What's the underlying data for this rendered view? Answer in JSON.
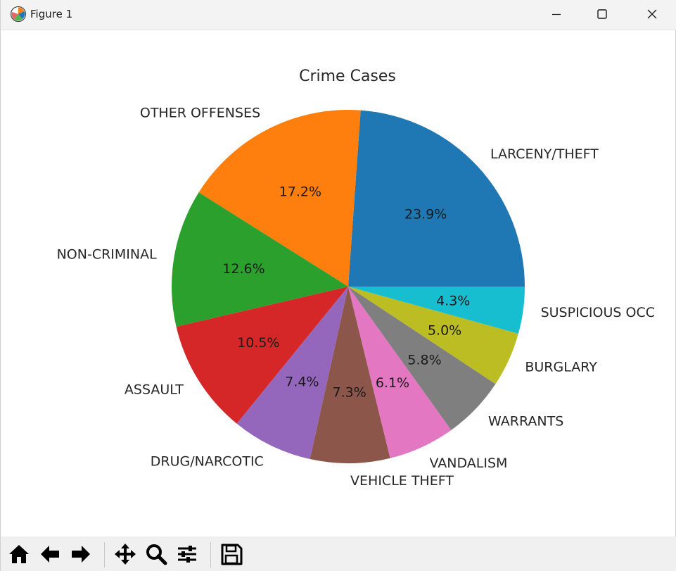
{
  "window": {
    "title": "Figure 1",
    "icon": "matplotlib-logo-icon",
    "controls": [
      "minimize-icon",
      "maximize-icon",
      "close-icon"
    ]
  },
  "toolbar": {
    "buttons": [
      {
        "name": "home-icon",
        "tooltip": "Reset original view"
      },
      {
        "name": "back-arrow-icon",
        "tooltip": "Back"
      },
      {
        "name": "forward-arrow-icon",
        "tooltip": "Forward"
      },
      {
        "name": "pan-icon",
        "tooltip": "Pan"
      },
      {
        "name": "zoom-icon",
        "tooltip": "Zoom"
      },
      {
        "name": "configure-subplots-icon",
        "tooltip": "Configure subplots"
      },
      {
        "name": "save-icon",
        "tooltip": "Save"
      }
    ]
  },
  "chart_data": {
    "type": "pie",
    "title": "Crime Cases",
    "start_angle_deg": 0,
    "direction": "counterclockwise",
    "slices": [
      {
        "label": "LARCENY/THEFT",
        "value": 23.9,
        "pct_label": "23.9%",
        "color": "#1f77b4"
      },
      {
        "label": "OTHER OFFENSES",
        "value": 17.2,
        "pct_label": "17.2%",
        "color": "#ff7f0e"
      },
      {
        "label": "NON-CRIMINAL",
        "value": 12.6,
        "pct_label": "12.6%",
        "color": "#2ca02c"
      },
      {
        "label": "ASSAULT",
        "value": 10.5,
        "pct_label": "10.5%",
        "color": "#d62728"
      },
      {
        "label": "DRUG/NARCOTIC",
        "value": 7.4,
        "pct_label": "7.4%",
        "color": "#9467bd"
      },
      {
        "label": "VEHICLE THEFT",
        "value": 7.3,
        "pct_label": "7.3%",
        "color": "#8c564b"
      },
      {
        "label": "VANDALISM",
        "value": 6.1,
        "pct_label": "6.1%",
        "color": "#e377c2"
      },
      {
        "label": "WARRANTS",
        "value": 5.8,
        "pct_label": "5.8%",
        "color": "#7f7f7f"
      },
      {
        "label": "BURGLARY",
        "value": 5.0,
        "pct_label": "5.0%",
        "color": "#bcbd22"
      },
      {
        "label": "SUSPICIOUS OCC",
        "value": 4.3,
        "pct_label": "4.3%",
        "color": "#17becf"
      }
    ]
  }
}
